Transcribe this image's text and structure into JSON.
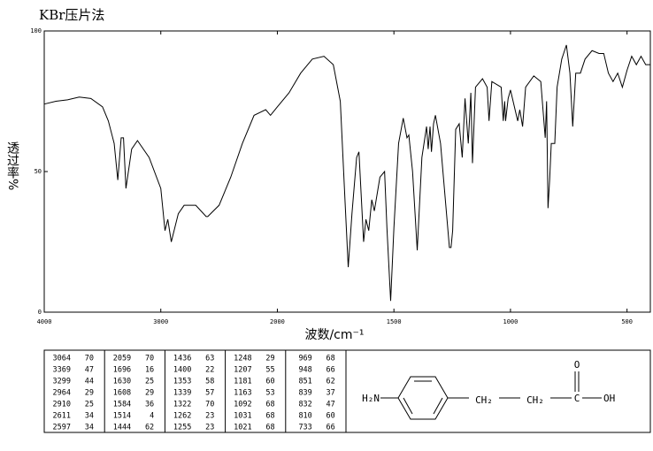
{
  "chart_data": {
    "type": "line",
    "title": "KBr压片法",
    "x_label": "波数/cm⁻¹",
    "y_label": "透过率%",
    "color": "#000000",
    "xlim": [
      4000,
      400
    ],
    "xticks": [
      4000,
      3000,
      2000,
      1500,
      1000,
      500
    ],
    "ylim": [
      0,
      100
    ],
    "yticks": [
      0,
      50,
      100
    ],
    "x": [
      4000,
      3900,
      3800,
      3700,
      3600,
      3500,
      3450,
      3400,
      3369,
      3340,
      3320,
      3299,
      3250,
      3200,
      3100,
      3000,
      2964,
      2940,
      2910,
      2850,
      2800,
      2700,
      2611,
      2597,
      2500,
      2400,
      2300,
      2200,
      2100,
      2059,
      2000,
      1950,
      1900,
      1850,
      1800,
      1760,
      1730,
      1710,
      1696,
      1680,
      1660,
      1650,
      1630,
      1620,
      1608,
      1595,
      1584,
      1560,
      1540,
      1530,
      1514,
      1500,
      1480,
      1460,
      1444,
      1436,
      1420,
      1400,
      1380,
      1360,
      1353,
      1345,
      1339,
      1330,
      1322,
      1300,
      1262,
      1255,
      1248,
      1235,
      1220,
      1207,
      1195,
      1181,
      1170,
      1163,
      1150,
      1120,
      1100,
      1092,
      1080,
      1040,
      1031,
      1025,
      1021,
      1010,
      1000,
      969,
      960,
      948,
      935,
      900,
      870,
      851,
      845,
      839,
      832,
      825,
      810,
      800,
      780,
      760,
      745,
      733,
      720,
      700,
      680,
      650,
      620,
      600,
      580,
      560,
      540,
      520,
      500,
      480,
      460,
      440,
      420,
      400
    ],
    "values": [
      74,
      75,
      75.5,
      76.5,
      76,
      73,
      68,
      60,
      47,
      62,
      62,
      44,
      58,
      61,
      55,
      44,
      29,
      33,
      25,
      35,
      38,
      38,
      34,
      34,
      38,
      48,
      60,
      70,
      72,
      70,
      73,
      78,
      85,
      90,
      91,
      88,
      75,
      40,
      16,
      35,
      55,
      57,
      25,
      33,
      29,
      40,
      36,
      48,
      50,
      30,
      4,
      30,
      60,
      69,
      62,
      63,
      50,
      22,
      55,
      66,
      58,
      66,
      57,
      67,
      70,
      60,
      23,
      23,
      29,
      65,
      67,
      55,
      76,
      60,
      78,
      53,
      80,
      83,
      80,
      68,
      82,
      80,
      68,
      75,
      68,
      76,
      79,
      68,
      72,
      66,
      80,
      84,
      82,
      62,
      75,
      37,
      47,
      60,
      60,
      80,
      90,
      95,
      85,
      66,
      85,
      85,
      90,
      93,
      92,
      92,
      85,
      82,
      85,
      80,
      86,
      91,
      88,
      91,
      88,
      88
    ]
  },
  "peak_table": {
    "groups": [
      [
        [
          3064,
          70
        ],
        [
          3369,
          47
        ],
        [
          3299,
          44
        ],
        [
          2964,
          29
        ],
        [
          2910,
          25
        ],
        [
          2611,
          34
        ],
        [
          2597,
          34
        ]
      ],
      [
        [
          2059,
          70
        ],
        [
          1696,
          16
        ],
        [
          1630,
          25
        ],
        [
          1608,
          29
        ],
        [
          1584,
          36
        ],
        [
          1514,
          4
        ],
        [
          1444,
          62
        ]
      ],
      [
        [
          1436,
          63
        ],
        [
          1400,
          22
        ],
        [
          1353,
          58
        ],
        [
          1339,
          57
        ],
        [
          1322,
          70
        ],
        [
          1262,
          23
        ],
        [
          1255,
          23
        ]
      ],
      [
        [
          1248,
          29
        ],
        [
          1207,
          55
        ],
        [
          1181,
          60
        ],
        [
          1163,
          53
        ],
        [
          1092,
          68
        ],
        [
          1031,
          68
        ],
        [
          1021,
          68
        ]
      ],
      [
        [
          969,
          68
        ],
        [
          948,
          66
        ],
        [
          851,
          62
        ],
        [
          839,
          37
        ],
        [
          832,
          47
        ],
        [
          810,
          60
        ],
        [
          733,
          66
        ]
      ]
    ]
  },
  "structure": {
    "amine": "H₂N",
    "methylene_1": "CH₂",
    "methylene_2": "CH₂",
    "carbon": "C",
    "carbonyl_oxygen": "O",
    "hydroxyl": "OH"
  }
}
